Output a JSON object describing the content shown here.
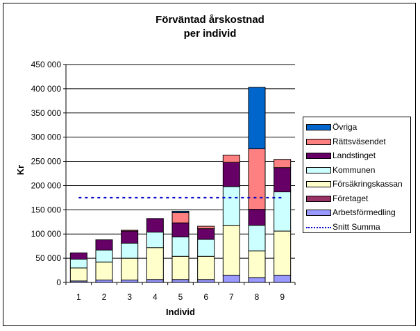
{
  "chart_data": {
    "type": "bar",
    "stacked": true,
    "title_line1": "Förväntad årskostnad",
    "title_line2": "per individ",
    "xlabel": "Individ",
    "ylabel": "Kr",
    "ylim": [
      0,
      450000
    ],
    "yticks": [
      "0",
      "50 000",
      "100 000",
      "150 000",
      "200 000",
      "250 000",
      "300 000",
      "350 000",
      "400 000",
      "450 000"
    ],
    "categories": [
      "1",
      "2",
      "3",
      "4",
      "5",
      "6",
      "7",
      "8",
      "9"
    ],
    "legend_position": "right",
    "series": [
      {
        "name": "Arbetsförmedling",
        "color": "#9999ff",
        "values": [
          3000,
          5000,
          5000,
          6000,
          6000,
          6000,
          15000,
          10000,
          15000
        ]
      },
      {
        "name": "Företaget",
        "color": "#993366",
        "values": [
          0,
          0,
          0,
          0,
          0,
          0,
          0,
          0,
          0
        ]
      },
      {
        "name": "Försäkringskassan",
        "color": "#ffffcc",
        "values": [
          27000,
          37000,
          45000,
          66000,
          48000,
          48000,
          103000,
          55000,
          91000
        ]
      },
      {
        "name": "Kommunen",
        "color": "#ccffff",
        "values": [
          18000,
          25000,
          31000,
          32000,
          40000,
          35000,
          80000,
          53000,
          81000
        ]
      },
      {
        "name": "Landstinget",
        "color": "#660066",
        "values": [
          13000,
          21000,
          25000,
          28000,
          29000,
          22000,
          50000,
          33000,
          50000
        ]
      },
      {
        "name": "Rättsväsendet",
        "color": "#ff8080",
        "values": [
          0,
          0,
          2000,
          0,
          21000,
          5000,
          15000,
          125000,
          17000
        ]
      },
      {
        "name": "Övriga",
        "color": "#0066cc",
        "values": [
          0,
          0,
          0,
          0,
          3000,
          0,
          0,
          127000,
          0
        ]
      }
    ],
    "average_line": {
      "name": "Snitt Summa",
      "color": "#0000cc",
      "value": 175000
    }
  }
}
